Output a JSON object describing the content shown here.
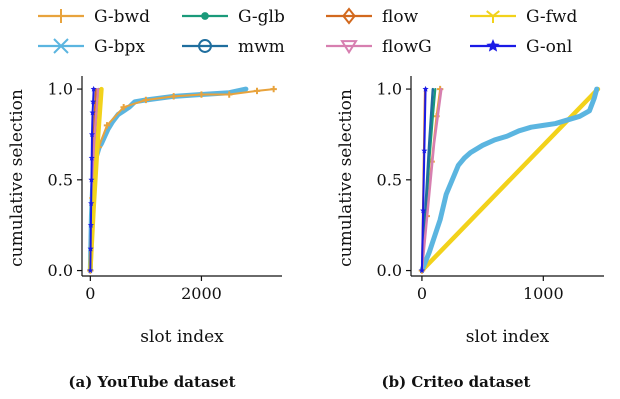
{
  "legend": [
    {
      "name": "G-bwd",
      "color": "#E8A33D",
      "marker": "plus"
    },
    {
      "name": "G-glb",
      "color": "#1A9A7A",
      "marker": "dot"
    },
    {
      "name": "flow",
      "color": "#D2691E",
      "marker": "diamond"
    },
    {
      "name": "G-fwd",
      "color": "#F2D21B",
      "marker": "tri-down"
    },
    {
      "name": "G-bpx",
      "color": "#5BB5E0",
      "marker": "x"
    },
    {
      "name": "mwm",
      "color": "#1F6E9E",
      "marker": "circle"
    },
    {
      "name": "flowG",
      "color": "#D77FB0",
      "marker": "tri-down-open"
    },
    {
      "name": "G-onl",
      "color": "#1A1AE6",
      "marker": "star"
    }
  ],
  "chart_data": [
    {
      "type": "line",
      "caption": "(a) YouTube dataset",
      "xlabel": "slot index",
      "ylabel": "cumulative selection",
      "xlim": [
        -150,
        3450
      ],
      "ylim": [
        -0.03,
        1.05
      ],
      "xticks": [
        0,
        2000
      ],
      "yticks": [
        0.0,
        0.5,
        1.0
      ],
      "series": [
        {
          "name": "G-bpx",
          "x": [
            0,
            20,
            40,
            60,
            80,
            100,
            130,
            160,
            200,
            260,
            320,
            400,
            500,
            600,
            700,
            800,
            1000,
            1500,
            2000,
            2500,
            2800
          ],
          "y": [
            0.0,
            0.3,
            0.45,
            0.55,
            0.6,
            0.62,
            0.65,
            0.68,
            0.7,
            0.74,
            0.78,
            0.82,
            0.86,
            0.88,
            0.9,
            0.93,
            0.94,
            0.96,
            0.97,
            0.98,
            1.0
          ]
        },
        {
          "name": "G-bwd",
          "x": [
            0,
            40,
            80,
            150,
            300,
            600,
            1000,
            1500,
            2000,
            2500,
            3000,
            3300
          ],
          "y": [
            0.0,
            0.4,
            0.6,
            0.68,
            0.8,
            0.9,
            0.94,
            0.96,
            0.97,
            0.97,
            0.99,
            1.0
          ]
        },
        {
          "name": "G-glb",
          "x": [
            0,
            60,
            120,
            170
          ],
          "y": [
            0.0,
            0.4,
            0.75,
            1.0
          ]
        },
        {
          "name": "mwm",
          "x": [
            0,
            50,
            100,
            150
          ],
          "y": [
            0.0,
            0.4,
            0.75,
            1.0
          ]
        },
        {
          "name": "flow",
          "x": [
            0,
            30,
            60,
            100
          ],
          "y": [
            0.0,
            0.4,
            0.75,
            1.0
          ]
        },
        {
          "name": "flowG",
          "x": [
            0,
            40,
            80,
            140
          ],
          "y": [
            0.0,
            0.4,
            0.75,
            1.0
          ]
        },
        {
          "name": "G-fwd",
          "x": [
            0,
            60,
            130,
            200
          ],
          "y": [
            0.0,
            0.35,
            0.7,
            1.0
          ]
        },
        {
          "name": "G-onl",
          "x": [
            0,
            5,
            10,
            15,
            20,
            25,
            30,
            40,
            50,
            60
          ],
          "y": [
            0.0,
            0.12,
            0.25,
            0.37,
            0.5,
            0.62,
            0.75,
            0.87,
            0.93,
            1.0
          ]
        }
      ]
    },
    {
      "type": "line",
      "caption": "(b) Criteo dataset",
      "xlabel": "slot index",
      "ylabel": "cumulative selection",
      "xlim": [
        -90,
        1500
      ],
      "ylim": [
        -0.03,
        1.05
      ],
      "xticks": [
        0,
        1000
      ],
      "yticks": [
        0.0,
        0.5,
        1.0
      ],
      "series": [
        {
          "name": "G-fwd",
          "x": [
            0,
            1450
          ],
          "y": [
            0.0,
            1.0
          ]
        },
        {
          "name": "G-bpx",
          "x": [
            0,
            30,
            60,
            100,
            150,
            200,
            250,
            300,
            350,
            400,
            500,
            600,
            700,
            800,
            900,
            1000,
            1100,
            1200,
            1300,
            1380,
            1420,
            1440
          ],
          "y": [
            0.0,
            0.05,
            0.1,
            0.18,
            0.28,
            0.42,
            0.5,
            0.58,
            0.62,
            0.65,
            0.69,
            0.72,
            0.74,
            0.77,
            0.79,
            0.8,
            0.81,
            0.83,
            0.85,
            0.88,
            0.95,
            1.0
          ]
        },
        {
          "name": "G-bwd",
          "x": [
            0,
            40,
            80,
            120,
            150
          ],
          "y": [
            0.0,
            0.3,
            0.6,
            0.85,
            1.0
          ]
        },
        {
          "name": "G-glb",
          "x": [
            0,
            30,
            60,
            90,
            110
          ],
          "y": [
            0.0,
            0.3,
            0.6,
            0.85,
            1.0
          ]
        },
        {
          "name": "mwm",
          "x": [
            0,
            30,
            60,
            90
          ],
          "y": [
            0.0,
            0.35,
            0.7,
            1.0
          ]
        },
        {
          "name": "flowG",
          "x": [
            0,
            50,
            100,
            160
          ],
          "y": [
            0.0,
            0.35,
            0.7,
            1.0
          ]
        },
        {
          "name": "flow",
          "x": [
            0,
            5,
            10,
            15,
            20,
            25
          ],
          "y": [
            0.0,
            0.2,
            0.4,
            0.6,
            0.8,
            1.0
          ]
        },
        {
          "name": "G-onl",
          "x": [
            0,
            10,
            20,
            30
          ],
          "y": [
            0.0,
            0.33,
            0.66,
            1.0
          ]
        }
      ]
    }
  ]
}
